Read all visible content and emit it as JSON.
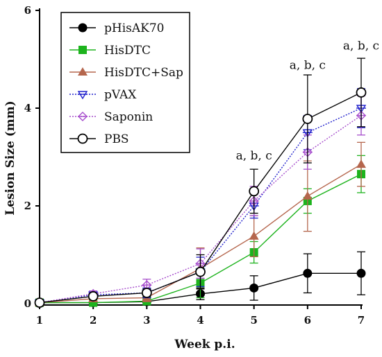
{
  "chart_data": {
    "type": "line",
    "xlabel": "Week p.i.",
    "ylabel": "Lesion Size (mm)",
    "x": [
      1,
      2,
      3,
      4,
      5,
      6,
      7
    ],
    "xlim": [
      1,
      7
    ],
    "ylim": [
      0,
      6
    ],
    "xticks": [
      1,
      2,
      3,
      4,
      5,
      6,
      7
    ],
    "yticks": [
      0,
      2,
      4,
      6
    ],
    "grid": false,
    "legend_position": "top-left",
    "annotations": [
      {
        "x": 5,
        "y": 2.95,
        "text": "a, b, c"
      },
      {
        "x": 6,
        "y": 4.8,
        "text": "a, b, c"
      },
      {
        "x": 7,
        "y": 5.2,
        "text": "a, b, c"
      }
    ],
    "series": [
      {
        "name": "pHisAK70",
        "color": "#000000",
        "marker": "circle-filled",
        "dash": "solid",
        "values": [
          0.02,
          0.02,
          0.04,
          0.2,
          0.32,
          0.62,
          0.62
        ],
        "errors": [
          0.02,
          0.02,
          0.02,
          0.12,
          0.25,
          0.4,
          0.44
        ]
      },
      {
        "name": "HisDTC",
        "color": "#1db31d",
        "marker": "square-filled",
        "dash": "solid",
        "values": [
          0.02,
          0.02,
          0.05,
          0.42,
          1.05,
          2.1,
          2.65
        ],
        "errors": [
          0.02,
          0.02,
          0.02,
          0.3,
          0.22,
          0.25,
          0.38
        ]
      },
      {
        "name": "HisDTC+Sap",
        "color": "#b5664d",
        "marker": "triangle-filled",
        "dash": "solid",
        "values": [
          0.02,
          0.1,
          0.12,
          0.72,
          1.38,
          2.2,
          2.85
        ],
        "errors": [
          0.02,
          0.05,
          0.08,
          0.42,
          0.42,
          0.72,
          0.45
        ]
      },
      {
        "name": "pVAX",
        "color": "#1f1fcc",
        "marker": "triangle-down-bar",
        "dash": "dotted",
        "values": [
          0.02,
          0.18,
          0.22,
          0.65,
          2.0,
          3.5,
          4.0
        ],
        "errors": [
          0.02,
          0.06,
          0.1,
          0.3,
          0.25,
          0.35,
          0.4
        ]
      },
      {
        "name": "Saponin",
        "color": "#a64dcc",
        "marker": "diamond-bar",
        "dash": "dotted",
        "values": [
          0.02,
          0.2,
          0.38,
          0.82,
          2.1,
          3.1,
          3.85
        ],
        "errors": [
          0.02,
          0.06,
          0.12,
          0.3,
          0.3,
          0.35,
          0.4
        ]
      },
      {
        "name": "PBS",
        "color": "#000000",
        "marker": "circle-open",
        "dash": "solid",
        "values": [
          0.02,
          0.15,
          0.22,
          0.65,
          2.3,
          3.78,
          4.32
        ],
        "errors": [
          0.02,
          0.05,
          0.08,
          0.35,
          0.45,
          0.9,
          0.7
        ]
      }
    ]
  }
}
